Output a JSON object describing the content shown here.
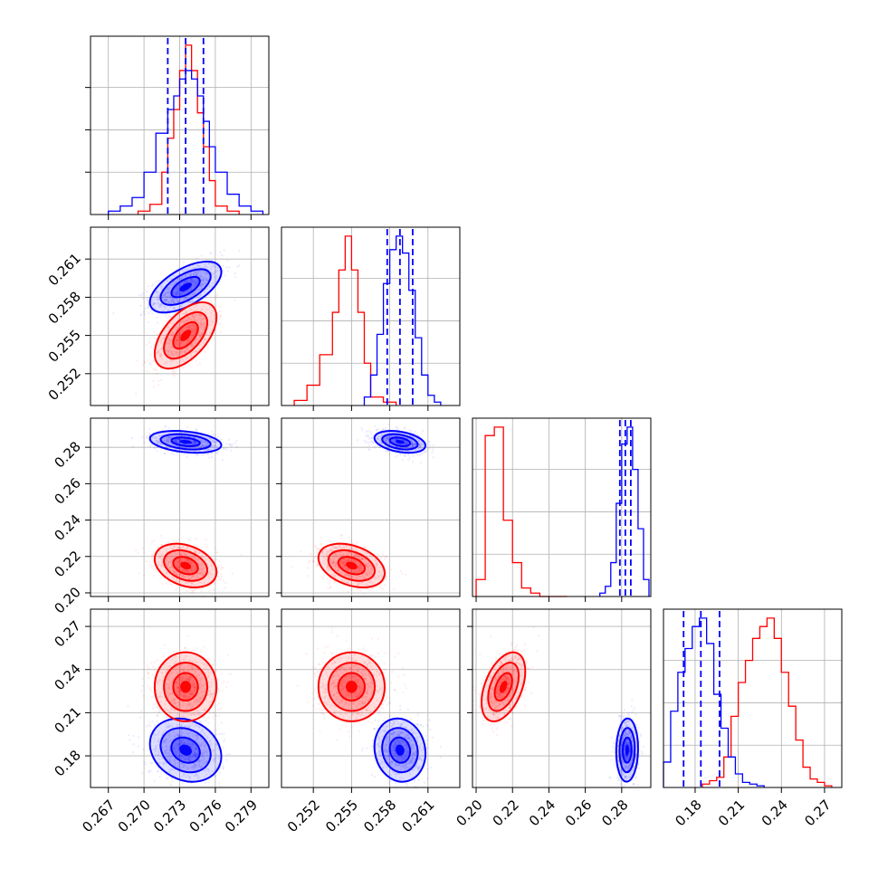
{
  "chart_data": {
    "type": "corner",
    "colors": {
      "red": "#ff0000",
      "blue": "#0000ff"
    },
    "grid": true,
    "parameters": [
      {
        "range": [
          0.2655,
          0.2805
        ],
        "ticks": [
          0.267,
          0.27,
          0.273,
          0.276,
          0.279
        ],
        "tick_labels": [
          "0.267",
          "0.270",
          "0.273",
          "0.276",
          "0.279"
        ]
      },
      {
        "range": [
          0.2495,
          0.2635
        ],
        "ticks": [
          0.252,
          0.255,
          0.258,
          0.261
        ],
        "tick_labels": [
          "0.252",
          "0.255",
          "0.258",
          "0.261"
        ]
      },
      {
        "range": [
          0.198,
          0.296
        ],
        "ticks": [
          0.2,
          0.22,
          0.24,
          0.26,
          0.28
        ],
        "tick_labels": [
          "0.20",
          "0.22",
          "0.24",
          "0.26",
          "0.28"
        ]
      },
      {
        "range": [
          0.158,
          0.282
        ],
        "ticks": [
          0.18,
          0.21,
          0.24,
          0.27
        ],
        "tick_labels": [
          "0.18",
          "0.21",
          "0.24",
          "0.27"
        ]
      }
    ],
    "series": [
      {
        "color": "red",
        "means": [
          0.2735,
          0.255,
          0.215,
          0.228
        ],
        "sigmas": [
          0.0013,
          0.0013,
          0.006,
          0.012
        ],
        "correlations": {
          "0-1": 0.55,
          "0-2": -0.3,
          "0-3": 0.0,
          "1-2": -0.35,
          "1-3": 0.0,
          "2-3": 0.45
        },
        "histograms": [
          {
            "edges": [
              0.2695,
              0.2705,
              0.2715,
              0.272,
              0.2725,
              0.273,
              0.2735,
              0.274,
              0.2745,
              0.275,
              0.2755,
              0.276,
              0.277,
              0.278
            ],
            "heights": [
              0.02,
              0.06,
              0.25,
              0.45,
              0.62,
              0.85,
              1.0,
              0.85,
              0.6,
              0.4,
              0.2,
              0.05,
              0.02
            ]
          },
          {
            "edges": [
              0.2505,
              0.2515,
              0.2525,
              0.2535,
              0.254,
              0.2545,
              0.255,
              0.2555,
              0.256,
              0.2565,
              0.2575,
              0.2585
            ],
            "heights": [
              0.03,
              0.12,
              0.3,
              0.55,
              0.8,
              1.0,
              0.8,
              0.55,
              0.25,
              0.05,
              0.02
            ]
          },
          {
            "edges": [
              0.2,
              0.205,
              0.21,
              0.215,
              0.22,
              0.225,
              0.23,
              0.235,
              0.24,
              0.245,
              0.25
            ],
            "heights": [
              0.1,
              0.95,
              1.0,
              0.45,
              0.2,
              0.05,
              0.02,
              0.0,
              0.0,
              0.0
            ]
          },
          {
            "edges": [
              0.185,
              0.19,
              0.195,
              0.2,
              0.205,
              0.21,
              0.215,
              0.22,
              0.225,
              0.23,
              0.235,
              0.24,
              0.245,
              0.25,
              0.255,
              0.26,
              0.265,
              0.27,
              0.275
            ],
            "heights": [
              0.02,
              0.04,
              0.06,
              0.18,
              0.42,
              0.62,
              0.75,
              0.88,
              0.95,
              1.0,
              0.88,
              0.68,
              0.48,
              0.28,
              0.12,
              0.05,
              0.03,
              0.01
            ]
          }
        ]
      },
      {
        "color": "blue",
        "means": [
          0.2735,
          0.2588,
          0.283,
          0.184
        ],
        "sigmas": [
          0.0015,
          0.001,
          0.003,
          0.011
        ],
        "correlations": {
          "0-1": 0.6,
          "0-2": -0.3,
          "0-3": -0.2,
          "1-2": -0.35,
          "1-3": -0.1,
          "2-3": 0.05
        },
        "quantiles": [
          [
            0.272,
            0.2735,
            0.275
          ],
          [
            0.2578,
            0.2588,
            0.2598
          ],
          [
            0.279,
            0.282,
            0.285
          ],
          [
            0.172,
            0.184,
            0.197
          ]
        ],
        "histograms": [
          {
            "edges": [
              0.267,
              0.268,
              0.269,
              0.27,
              0.271,
              0.272,
              0.2725,
              0.273,
              0.2735,
              0.274,
              0.2745,
              0.275,
              0.2755,
              0.276,
              0.277,
              0.278,
              0.279,
              0.28
            ],
            "heights": [
              0.02,
              0.05,
              0.1,
              0.25,
              0.48,
              0.62,
              0.7,
              0.8,
              0.85,
              0.8,
              0.7,
              0.55,
              0.4,
              0.25,
              0.12,
              0.05,
              0.02
            ]
          },
          {
            "edges": [
              0.256,
              0.2565,
              0.257,
              0.2575,
              0.258,
              0.2585,
              0.259,
              0.2595,
              0.26,
              0.2605,
              0.261,
              0.2615,
              0.262
            ],
            "heights": [
              0.05,
              0.18,
              0.42,
              0.72,
              0.92,
              1.0,
              0.9,
              0.68,
              0.4,
              0.18,
              0.06,
              0.02
            ]
          },
          {
            "edges": [
              0.268,
              0.271,
              0.274,
              0.277,
              0.28,
              0.283,
              0.286,
              0.289,
              0.292,
              0.295
            ],
            "heights": [
              0.02,
              0.06,
              0.2,
              0.55,
              0.9,
              1.0,
              0.75,
              0.4,
              0.1
            ]
          },
          {
            "edges": [
              0.158,
              0.163,
              0.168,
              0.173,
              0.178,
              0.183,
              0.188,
              0.193,
              0.198,
              0.203,
              0.208,
              0.213,
              0.218,
              0.223,
              0.228
            ],
            "heights": [
              0.15,
              0.45,
              0.68,
              0.82,
              0.95,
              1.0,
              0.85,
              0.55,
              0.35,
              0.18,
              0.08,
              0.03,
              0.02,
              0.01
            ]
          }
        ]
      }
    ]
  }
}
